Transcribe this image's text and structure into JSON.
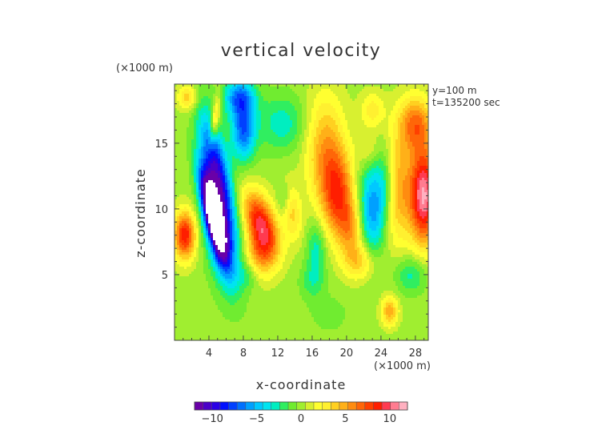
{
  "chart_data": {
    "type": "heatmap",
    "title": "vertical velocity",
    "xlabel": "x-coordinate",
    "ylabel": "z-coordinate",
    "x_unit": "(×1000 m)",
    "y_unit": "(×1000 m)",
    "annotations": [
      "y=100 m",
      "t=135200 sec"
    ],
    "xlim": [
      0,
      29.5
    ],
    "ylim": [
      0,
      19.5
    ],
    "xticks": [
      4,
      8,
      12,
      16,
      20,
      24,
      28
    ],
    "yticks": [
      5,
      10,
      15
    ],
    "colorbar": {
      "range": [
        -12,
        12
      ],
      "ticks": [
        -10,
        -5,
        0,
        5,
        10
      ],
      "levels": 25,
      "colors": [
        "#6a00a8",
        "#4b00c8",
        "#2a00e6",
        "#0010ff",
        "#0040ff",
        "#0070ff",
        "#00a0ff",
        "#00c8ff",
        "#00e4f0",
        "#00eec0",
        "#30ee60",
        "#70ec30",
        "#a0ee30",
        "#d8f030",
        "#ffff30",
        "#fff030",
        "#ffd020",
        "#ffb018",
        "#ff8c10",
        "#ff6608",
        "#ff4000",
        "#ff1e00",
        "#ff3a50",
        "#ff7c90",
        "#ffb0c0"
      ]
    },
    "features": [
      {
        "x": 4.5,
        "z": 9.5,
        "value": -14,
        "sx": 0.7,
        "sz": 2.3,
        "shear": -0.35
      },
      {
        "x": 4.7,
        "z": 13.5,
        "value": -8,
        "sx": 1.0,
        "sz": 2.8,
        "shear": -0.3
      },
      {
        "x": 5.5,
        "z": 8.5,
        "value": -8,
        "sx": 1.3,
        "sz": 3.0,
        "shear": -0.2
      },
      {
        "x": 8.0,
        "z": 16.0,
        "value": -7,
        "sx": 1.0,
        "sz": 1.6,
        "shear": 0.0
      },
      {
        "x": 7.5,
        "z": 18.5,
        "value": -6,
        "sx": 1.3,
        "sz": 1.0,
        "shear": 0.0
      },
      {
        "x": 1.2,
        "z": 8.0,
        "value": 9,
        "sx": 0.9,
        "sz": 1.3,
        "shear": 0.0
      },
      {
        "x": 4.7,
        "z": 16.7,
        "value": 5,
        "sx": 0.35,
        "sz": 1.3,
        "shear": 0.2
      },
      {
        "x": 1.5,
        "z": 18.5,
        "value": 4,
        "sx": 0.8,
        "sz": 0.7,
        "shear": 0.0
      },
      {
        "x": 10.0,
        "z": 9.0,
        "value": 9,
        "sx": 1.3,
        "sz": 1.7,
        "shear": -0.4
      },
      {
        "x": 10.0,
        "z": 6.5,
        "value": 5,
        "sx": 1.3,
        "sz": 1.3,
        "shear": 0.0
      },
      {
        "x": 13.5,
        "z": 10.0,
        "value": 4,
        "sx": 0.8,
        "sz": 1.6,
        "shear": -0.2
      },
      {
        "x": 16.0,
        "z": 4.5,
        "value": -2,
        "sx": 1.0,
        "sz": 1.0,
        "shear": 0.0
      },
      {
        "x": 12.5,
        "z": 16.5,
        "value": -3,
        "sx": 2.0,
        "sz": 1.5,
        "shear": 0.0
      },
      {
        "x": 12.8,
        "z": 10.8,
        "value": -3,
        "sx": 0.6,
        "sz": 1.0,
        "shear": 0.0
      },
      {
        "x": 17.5,
        "z": 14.5,
        "value": 5,
        "sx": 1.6,
        "sz": 3.0,
        "shear": 0.0
      },
      {
        "x": 19.0,
        "z": 11.0,
        "value": 7,
        "sx": 1.3,
        "sz": 2.3,
        "shear": 0.0
      },
      {
        "x": 20.5,
        "z": 8.5,
        "value": 4,
        "sx": 1.0,
        "sz": 1.5,
        "shear": 0.0
      },
      {
        "x": 21.5,
        "z": 6.0,
        "value": 4,
        "sx": 1.3,
        "sz": 1.0,
        "shear": 0.0
      },
      {
        "x": 16.5,
        "z": 7.0,
        "value": -3,
        "sx": 0.8,
        "sz": 1.5,
        "shear": 0.0
      },
      {
        "x": 23.0,
        "z": 10.0,
        "value": -6,
        "sx": 1.1,
        "sz": 2.5,
        "shear": 0.0
      },
      {
        "x": 24.5,
        "z": 12.0,
        "value": -3,
        "sx": 0.8,
        "sz": 2.0,
        "shear": 0.0
      },
      {
        "x": 22.5,
        "z": 14.5,
        "value": 2,
        "sx": 0.9,
        "sz": 1.0,
        "shear": 0.0
      },
      {
        "x": 23.0,
        "z": 17.5,
        "value": 3,
        "sx": 1.0,
        "sz": 1.0,
        "shear": 0.0
      },
      {
        "x": 26.0,
        "z": 11.5,
        "value": 5,
        "sx": 1.3,
        "sz": 3.0,
        "shear": 0.0
      },
      {
        "x": 29.0,
        "z": 11.0,
        "value": 11,
        "sx": 1.1,
        "sz": 2.6,
        "shear": 0.0
      },
      {
        "x": 28.0,
        "z": 16.5,
        "value": 6,
        "sx": 1.4,
        "sz": 1.5,
        "shear": 0.0
      },
      {
        "x": 27.5,
        "z": 5.0,
        "value": -3,
        "sx": 1.3,
        "sz": 1.0,
        "shear": 0.0
      },
      {
        "x": 25.0,
        "z": 2.2,
        "value": 5,
        "sx": 0.7,
        "sz": 0.8,
        "shear": 0.0
      },
      {
        "x": 8.5,
        "z": 5.0,
        "value": -2,
        "sx": 1.0,
        "sz": 0.8,
        "shear": 0.0
      },
      {
        "x": 18.0,
        "z": 2.0,
        "value": -1,
        "sx": 1.5,
        "sz": 1.0,
        "shear": 0.0
      }
    ]
  }
}
